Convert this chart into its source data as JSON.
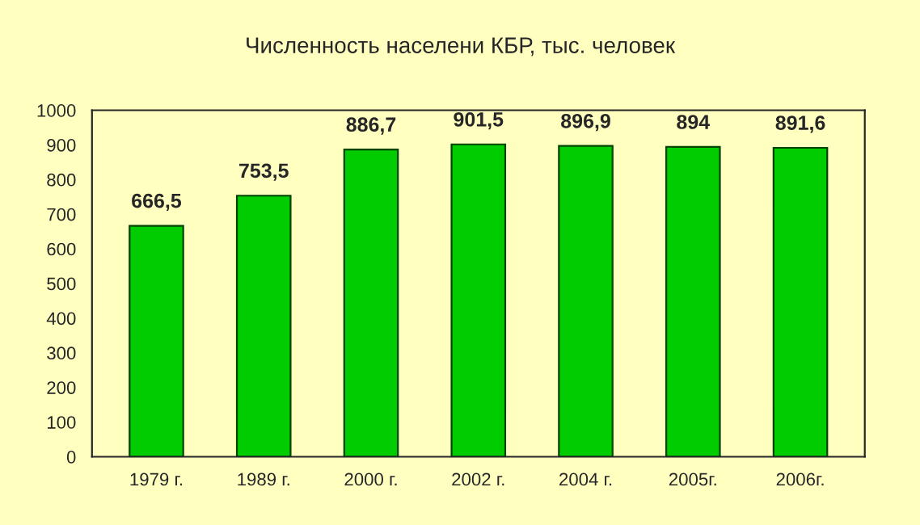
{
  "chart_data": {
    "type": "bar",
    "title": "Численность населени КБР, тыс. человек",
    "categories": [
      "1979 г.",
      "1989 г.",
      "2000 г.",
      "2002 г.",
      "2004 г.",
      "2005г.",
      "2006г."
    ],
    "values": [
      666.5,
      753.5,
      886.7,
      901.5,
      896.9,
      894,
      891.6
    ],
    "value_labels": [
      "666,5",
      "753,5",
      "886,7",
      "901,5",
      "896,9",
      "894",
      "891,6"
    ],
    "color": "#00cc00",
    "ylim": [
      0,
      1000
    ],
    "yticks": [
      0,
      100,
      200,
      300,
      400,
      500,
      600,
      700,
      800,
      900,
      1000
    ],
    "grid": false,
    "legend": false
  }
}
